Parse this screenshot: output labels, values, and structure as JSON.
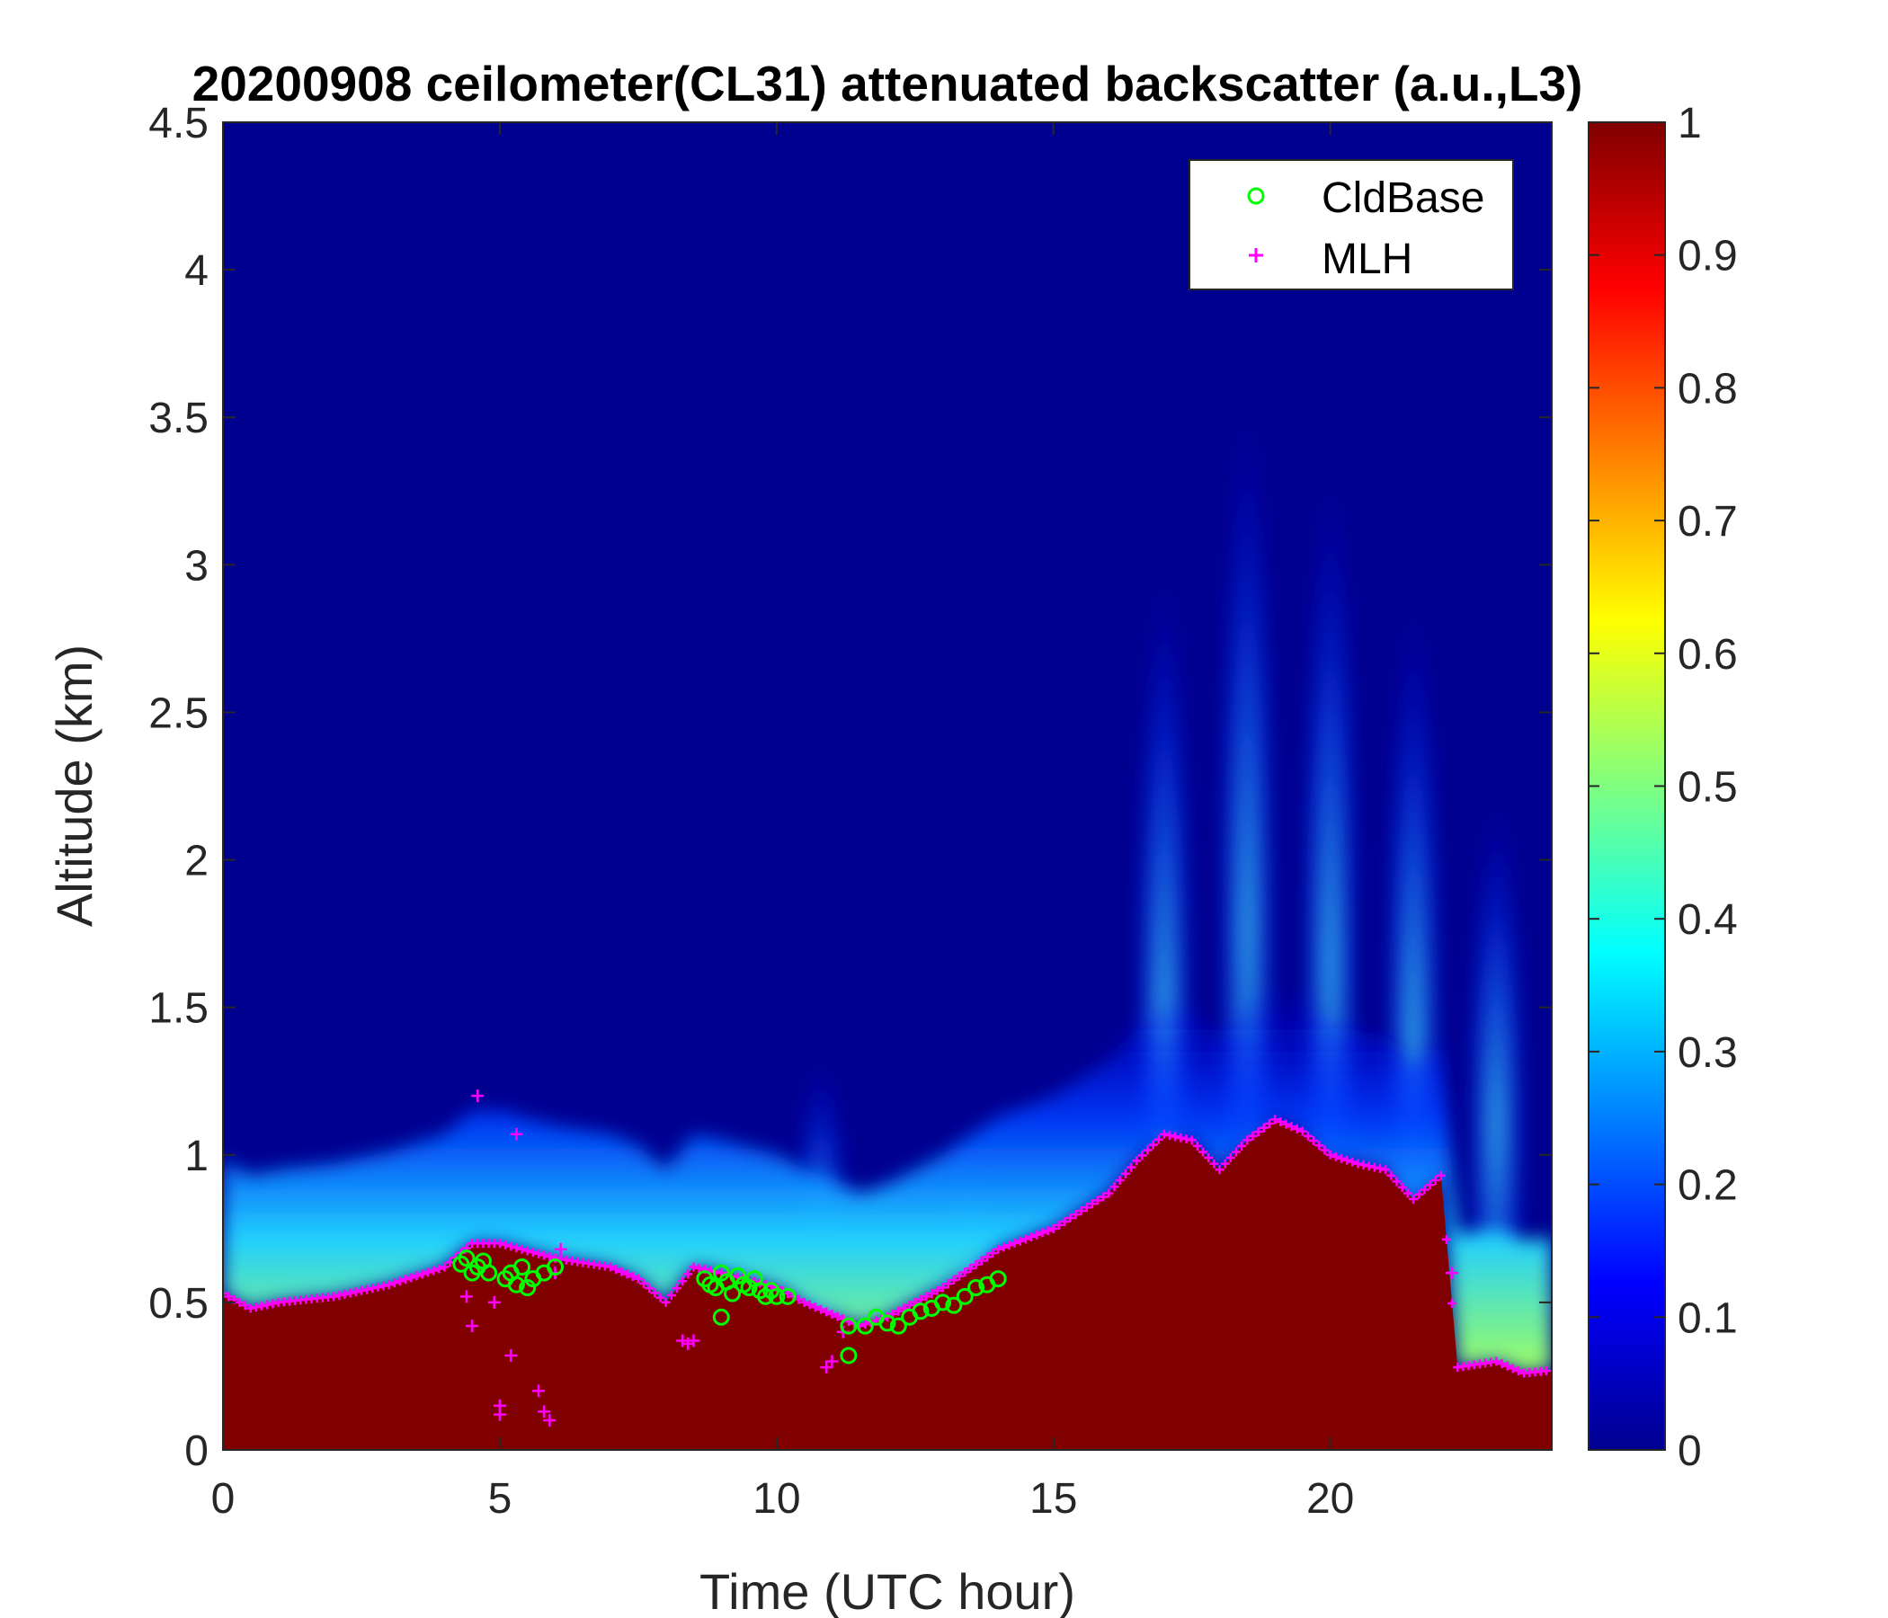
{
  "chart_data": {
    "type": "heatmap",
    "title": "20200908 ceilometer(CL31) attenuated backscatter (a.u.,L3)",
    "xlabel": "Time (UTC hour)",
    "ylabel": "Altitude (km)",
    "xlim": [
      0,
      24
    ],
    "ylim": [
      0,
      4.5
    ],
    "xticks": [
      "0",
      "5",
      "10",
      "15",
      "20"
    ],
    "xtick_values": [
      0,
      5,
      10,
      15,
      20
    ],
    "yticks": [
      "0",
      "0.5",
      "1",
      "1.5",
      "2",
      "2.5",
      "3",
      "3.5",
      "4",
      "4.5"
    ],
    "ytick_values": [
      0,
      0.5,
      1,
      1.5,
      2,
      2.5,
      3,
      3.5,
      4,
      4.5
    ],
    "colorbar": {
      "range": [
        0,
        1
      ],
      "colormap": "jet",
      "ticks": [
        "0",
        "0.1",
        "0.2",
        "0.3",
        "0.4",
        "0.5",
        "0.6",
        "0.7",
        "0.8",
        "0.9",
        "1"
      ],
      "tick_values": [
        0,
        0.1,
        0.2,
        0.3,
        0.4,
        0.5,
        0.6,
        0.7,
        0.8,
        0.9,
        1
      ]
    },
    "legend": {
      "placement": "top-right",
      "entries": [
        {
          "label": "CldBase",
          "marker": "circle",
          "color": "#00ff00"
        },
        {
          "label": "MLH",
          "marker": "plus",
          "color": "#ff00ff"
        }
      ]
    },
    "layer_top_profile": {
      "x": [
        0,
        0.5,
        1,
        2,
        3,
        4,
        4.5,
        5,
        6,
        7,
        7.5,
        8,
        8.5,
        9,
        10,
        10.5,
        11,
        11.5,
        12,
        13,
        14,
        15,
        16,
        16.5,
        17,
        17.5,
        18,
        18.5,
        19,
        19.5,
        20,
        20.5,
        21,
        21.5,
        22,
        22.3,
        23,
        23.5,
        24
      ],
      "y": [
        0.53,
        0.48,
        0.5,
        0.52,
        0.56,
        0.62,
        0.7,
        0.7,
        0.65,
        0.62,
        0.58,
        0.5,
        0.62,
        0.6,
        0.55,
        0.5,
        0.46,
        0.42,
        0.45,
        0.55,
        0.68,
        0.75,
        0.87,
        0.98,
        1.07,
        1.05,
        0.95,
        1.05,
        1.12,
        1.08,
        1.0,
        0.97,
        0.95,
        0.85,
        0.93,
        0.28,
        0.3,
        0.26,
        0.27
      ]
    },
    "cloud_base_points": {
      "x": [
        4.3,
        4.4,
        4.5,
        4.6,
        4.7,
        4.8,
        5.1,
        5.2,
        5.3,
        5.4,
        5.5,
        5.6,
        5.8,
        6.0,
        8.7,
        8.8,
        8.9,
        9.0,
        9.1,
        9.2,
        9.3,
        9.4,
        9.5,
        9.6,
        9.7,
        9.8,
        9.9,
        10.0,
        10.2,
        11.3,
        11.6,
        11.8,
        12.0,
        12.2,
        12.4,
        12.6,
        12.8,
        13.0,
        13.2,
        13.4,
        13.6,
        13.8,
        14.0,
        9.0,
        11.3
      ],
      "y": [
        0.63,
        0.65,
        0.6,
        0.62,
        0.64,
        0.6,
        0.58,
        0.6,
        0.56,
        0.62,
        0.55,
        0.58,
        0.6,
        0.62,
        0.58,
        0.56,
        0.55,
        0.6,
        0.57,
        0.53,
        0.59,
        0.56,
        0.55,
        0.58,
        0.54,
        0.52,
        0.54,
        0.52,
        0.52,
        0.42,
        0.42,
        0.45,
        0.43,
        0.42,
        0.45,
        0.47,
        0.48,
        0.5,
        0.49,
        0.52,
        0.55,
        0.56,
        0.58,
        0.45,
        0.32
      ]
    },
    "mlh_outliers": {
      "x": [
        4.6,
        5.3,
        4.4,
        4.5,
        4.9,
        5.0,
        5.0,
        5.2,
        5.7,
        5.8,
        5.9,
        6.0,
        6.1,
        8.3,
        8.4,
        8.5,
        10.9,
        11.0,
        11.2,
        22.2
      ],
      "y": [
        1.2,
        1.07,
        0.52,
        0.42,
        0.5,
        0.15,
        0.12,
        0.32,
        0.2,
        0.13,
        0.1,
        0.6,
        0.68,
        0.37,
        0.36,
        0.37,
        0.28,
        0.3,
        0.4,
        0.6
      ]
    },
    "aerosol_plumes": {
      "x": [
        4.7,
        5.3,
        5.8,
        10.8,
        13.5,
        17.0,
        18.5,
        20.0,
        21.5,
        23.0
      ],
      "y": [
        0.6,
        0.6,
        0.55,
        1.2,
        1.0,
        2.7,
        3.2,
        3.0,
        2.6,
        2.0
      ]
    }
  }
}
